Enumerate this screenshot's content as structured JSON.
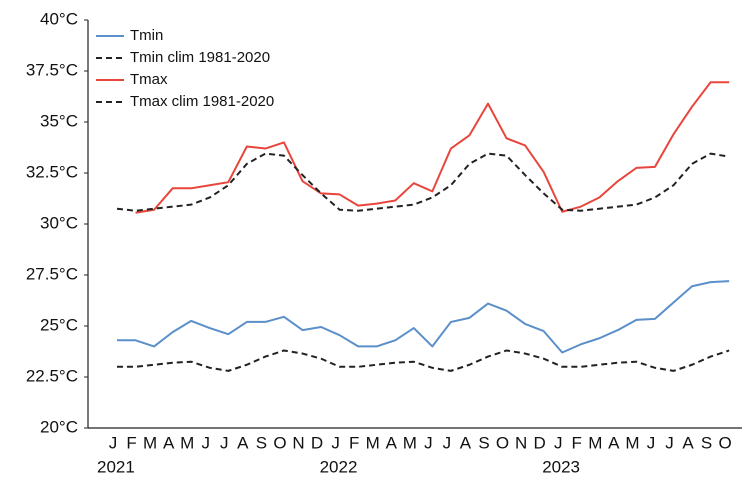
{
  "chart_data": {
    "type": "line",
    "categories": [
      "J",
      "F",
      "M",
      "A",
      "M",
      "J",
      "J",
      "A",
      "S",
      "O",
      "N",
      "D",
      "J",
      "F",
      "M",
      "A",
      "M",
      "J",
      "J",
      "A",
      "S",
      "O",
      "N",
      "D",
      "J",
      "F",
      "M",
      "A",
      "M",
      "J",
      "J",
      "A",
      "S",
      "O"
    ],
    "years": [
      "2021",
      "2022",
      "2023"
    ],
    "ylim": [
      20,
      40
    ],
    "yticks": [
      {
        "value": 20,
        "label": "20°C"
      },
      {
        "value": 22.5,
        "label": "22.5°C"
      },
      {
        "value": 25,
        "label": "25°C"
      },
      {
        "value": 27.5,
        "label": "27.5°C"
      },
      {
        "value": 30,
        "label": "30°C"
      },
      {
        "value": 32.5,
        "label": "32.5°C"
      },
      {
        "value": 35,
        "label": "35°C"
      },
      {
        "value": 37.5,
        "label": "37.5°C"
      },
      {
        "value": 40,
        "label": "40°C"
      }
    ],
    "legend": "upper left",
    "series": [
      {
        "name": "Tmin",
        "color": "#5b8fc9",
        "dash": false,
        "values": [
          24.3,
          24.3,
          24.0,
          24.7,
          25.25,
          24.9,
          24.6,
          25.2,
          25.2,
          25.45,
          24.8,
          24.95,
          24.55,
          24.0,
          24.0,
          24.3,
          24.9,
          24.0,
          25.2,
          25.4,
          26.1,
          25.75,
          25.1,
          24.75,
          23.7,
          24.1,
          24.4,
          24.8,
          25.3,
          25.35,
          26.15,
          26.95,
          27.15,
          27.2
        ]
      },
      {
        "name": "Tmin clim 1981-2020",
        "color": "#222222",
        "dash": true,
        "values": [
          23.0,
          23.0,
          23.1,
          23.2,
          23.25,
          22.95,
          22.8,
          23.1,
          23.5,
          23.8,
          23.65,
          23.4,
          23.0,
          23.0,
          23.1,
          23.2,
          23.25,
          22.95,
          22.8,
          23.1,
          23.5,
          23.8,
          23.65,
          23.4,
          23.0,
          23.0,
          23.1,
          23.2,
          23.25,
          22.95,
          22.8,
          23.1,
          23.5,
          23.8
        ]
      },
      {
        "name": "Tmax",
        "color": "#e8463c",
        "dash": false,
        "values": [
          null,
          30.55,
          30.7,
          31.75,
          31.75,
          31.9,
          32.05,
          33.8,
          33.7,
          34.0,
          32.1,
          31.5,
          31.45,
          30.9,
          31.0,
          31.15,
          32.0,
          31.6,
          33.7,
          34.35,
          35.9,
          34.2,
          33.85,
          32.55,
          30.6,
          30.85,
          31.3,
          32.1,
          32.75,
          32.8,
          34.4,
          35.75,
          36.95,
          36.95
        ]
      },
      {
        "name": "Tmax clim 1981-2020",
        "color": "#222222",
        "dash": true,
        "values": [
          30.75,
          30.65,
          30.75,
          30.85,
          30.95,
          31.3,
          31.9,
          32.95,
          33.45,
          33.35,
          32.4,
          31.5,
          30.7,
          30.65,
          30.75,
          30.85,
          30.95,
          31.3,
          31.9,
          32.95,
          33.45,
          33.35,
          32.4,
          31.5,
          30.7,
          30.65,
          30.75,
          30.85,
          30.95,
          31.3,
          31.9,
          32.95,
          33.45,
          33.3
        ]
      }
    ]
  }
}
